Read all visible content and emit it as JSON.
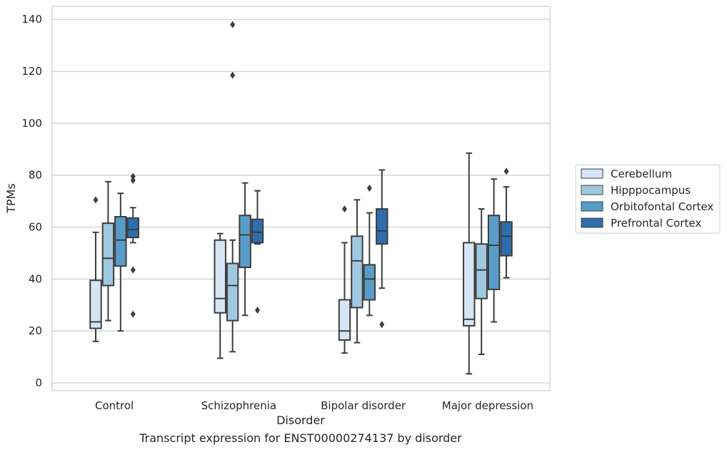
{
  "chart_data": {
    "type": "box",
    "xlabel": "Disorder",
    "ylabel": "TPMs",
    "caption": "Transcript expression for ENST00000274137 by disorder",
    "categories": [
      "Control",
      "Schizophrenia",
      "Bipolar disorder",
      "Major depression"
    ],
    "ylim": [
      -3,
      145
    ],
    "yticks": [
      0,
      20,
      40,
      60,
      80,
      100,
      120,
      140
    ],
    "grid": "horizontal",
    "legend_position": "right",
    "series": [
      {
        "name": "Cerebellum",
        "color": "#d6e5f4",
        "boxes": [
          {
            "min": 16,
            "q1": 21,
            "median": 23.5,
            "q3": 39.5,
            "max": 58,
            "outliers": [
              70.5
            ]
          },
          {
            "min": 9.5,
            "q1": 27,
            "median": 32.5,
            "q3": 55,
            "max": 57.5,
            "outliers": []
          },
          {
            "min": 11.5,
            "q1": 16.5,
            "median": 20,
            "q3": 32,
            "max": 54,
            "outliers": [
              67
            ]
          },
          {
            "min": 3.5,
            "q1": 22,
            "median": 24.5,
            "q3": 54,
            "max": 88.5,
            "outliers": []
          }
        ]
      },
      {
        "name": "Hipppocampus",
        "color": "#a0c9e1",
        "boxes": [
          {
            "min": 24,
            "q1": 37.5,
            "median": 48,
            "q3": 61.5,
            "max": 77.5,
            "outliers": []
          },
          {
            "min": 12,
            "q1": 24,
            "median": 37.5,
            "q3": 46,
            "max": 55,
            "outliers": [
              118.5,
              138
            ]
          },
          {
            "min": 15.5,
            "q1": 29,
            "median": 47,
            "q3": 56.5,
            "max": 70.5,
            "outliers": []
          },
          {
            "min": 11,
            "q1": 32.5,
            "median": 43.5,
            "q3": 53.5,
            "max": 67,
            "outliers": []
          }
        ]
      },
      {
        "name": "Orbitofontal Cortex",
        "color": "#5a9cc9",
        "boxes": [
          {
            "min": 20,
            "q1": 45,
            "median": 55,
            "q3": 64,
            "max": 73,
            "outliers": []
          },
          {
            "min": 26,
            "q1": 44.5,
            "median": 57,
            "q3": 64.5,
            "max": 77,
            "outliers": []
          },
          {
            "min": 26,
            "q1": 32,
            "median": 40,
            "q3": 45.5,
            "max": 65.5,
            "outliers": [
              75
            ]
          },
          {
            "min": 23.5,
            "q1": 36,
            "median": 53,
            "q3": 64.5,
            "max": 78.5,
            "outliers": []
          }
        ]
      },
      {
        "name": "Prefrontal Cortex",
        "color": "#2e6eae",
        "boxes": [
          {
            "min": 54,
            "q1": 56,
            "median": 59,
            "q3": 63.5,
            "max": 67.5,
            "outliers": [
              26.5,
              43.5,
              78,
              79.5
            ]
          },
          {
            "min": 53.5,
            "q1": 54,
            "median": 58,
            "q3": 63,
            "max": 74,
            "outliers": [
              28
            ]
          },
          {
            "min": 36.5,
            "q1": 53.5,
            "median": 58.5,
            "q3": 67,
            "max": 82,
            "outliers": [
              22.5
            ]
          },
          {
            "min": 40.5,
            "q1": 49,
            "median": 56.5,
            "q3": 62,
            "max": 75.5,
            "outliers": [
              81.5
            ]
          }
        ]
      }
    ]
  }
}
